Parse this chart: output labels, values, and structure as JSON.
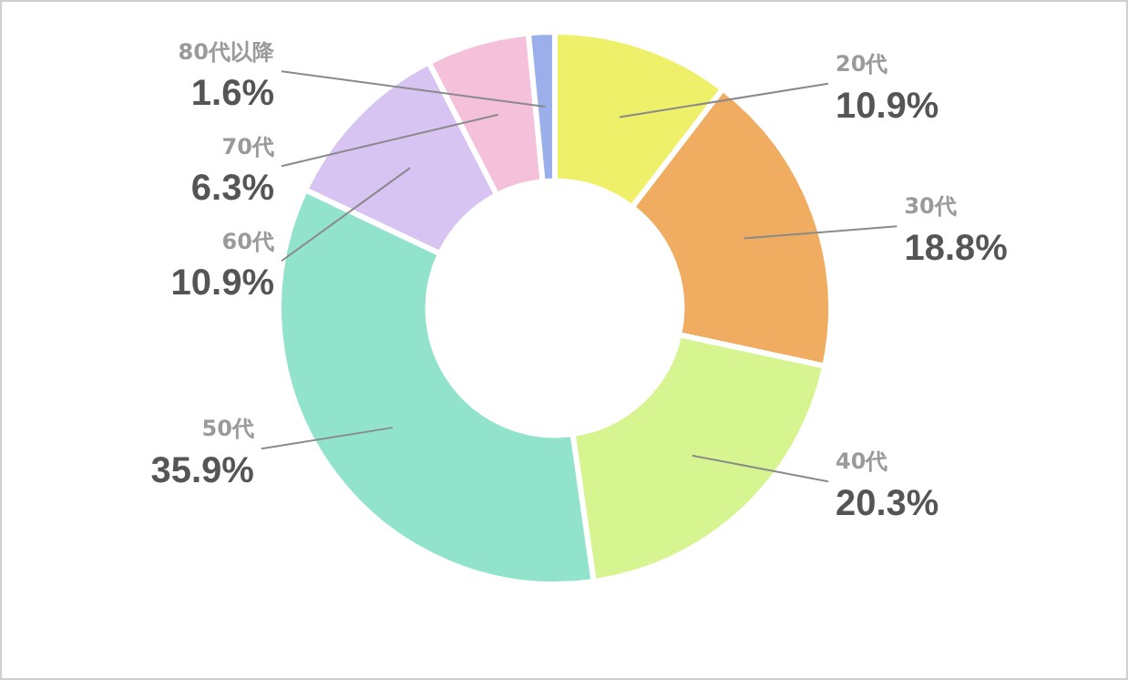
{
  "chart_data": {
    "type": "donut",
    "categories": [
      "20代",
      "30代",
      "40代",
      "50代",
      "60代",
      "70代",
      "80代以降"
    ],
    "values": [
      10.9,
      18.8,
      20.3,
      35.9,
      10.9,
      6.3,
      1.6
    ],
    "colors": [
      "#eef06a",
      "#f0ad62",
      "#d6f590",
      "#92e3cc",
      "#d7c4f2",
      "#f5c0da",
      "#9bb0ea"
    ],
    "value_labels": [
      "10.9%",
      "18.8%",
      "20.3%",
      "35.9%",
      "10.9%",
      "6.3%",
      "1.6%"
    ]
  }
}
